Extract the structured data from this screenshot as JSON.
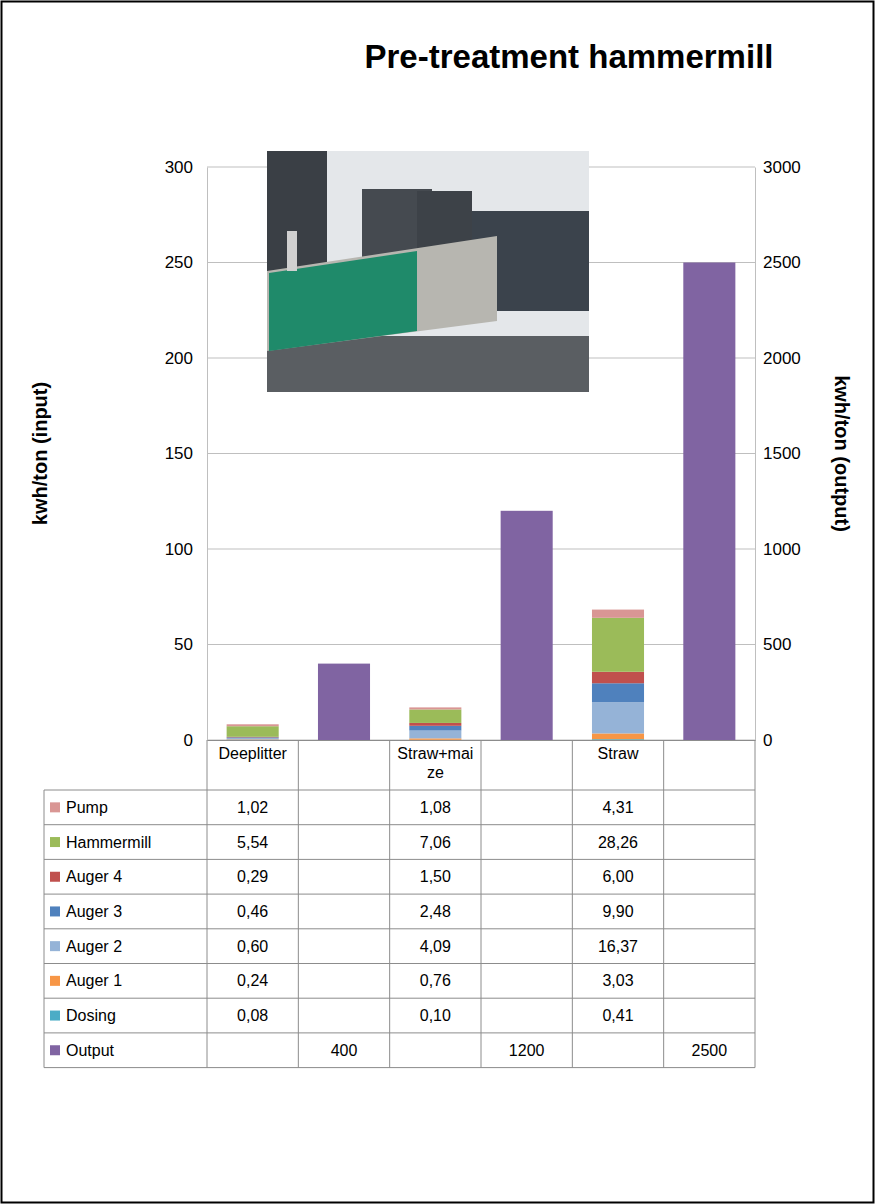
{
  "chart_data": {
    "type": "bar",
    "title": "Pre-treatment hammermill",
    "y_label": "kwh/ton (input)",
    "y2_label": "kwh/ton (output)",
    "categories": [
      "Deeplitter",
      null,
      "Straw+maize",
      null,
      "Straw",
      null
    ],
    "stacked": true,
    "grid": true,
    "ylim": [
      0,
      300
    ],
    "yticks": [
      0,
      50,
      100,
      150,
      200,
      250,
      300
    ],
    "y2lim": [
      0,
      3000
    ],
    "y2ticks": [
      0,
      500,
      1000,
      1500,
      2000,
      2500,
      3000
    ],
    "series": [
      {
        "name": "Pump",
        "color": "#d99694",
        "values": [
          1.02,
          null,
          1.08,
          null,
          4.31,
          null
        ],
        "value_labels": [
          "1,02",
          null,
          "1,08",
          null,
          "4,31",
          null
        ]
      },
      {
        "name": "Hammermill",
        "color": "#9bbb59",
        "values": [
          5.54,
          null,
          7.06,
          null,
          28.26,
          null
        ],
        "value_labels": [
          "5,54",
          null,
          "7,06",
          null,
          "28,26",
          null
        ]
      },
      {
        "name": "Auger 4",
        "color": "#c0504d",
        "values": [
          0.29,
          null,
          1.5,
          null,
          6.0,
          null
        ],
        "value_labels": [
          "0,29",
          null,
          "1,50",
          null,
          "6,00",
          null
        ]
      },
      {
        "name": "Auger 3",
        "color": "#4f81bd",
        "values": [
          0.46,
          null,
          2.48,
          null,
          9.9,
          null
        ],
        "value_labels": [
          "0,46",
          null,
          "2,48",
          null,
          "9,90",
          null
        ]
      },
      {
        "name": "Auger 2",
        "color": "#95b3d7",
        "values": [
          0.6,
          null,
          4.09,
          null,
          16.37,
          null
        ],
        "value_labels": [
          "0,60",
          null,
          "4,09",
          null,
          "16,37",
          null
        ]
      },
      {
        "name": "Auger 1",
        "color": "#f79646",
        "values": [
          0.24,
          null,
          0.76,
          null,
          3.03,
          null
        ],
        "value_labels": [
          "0,24",
          null,
          "0,76",
          null,
          "3,03",
          null
        ]
      },
      {
        "name": "Dosing",
        "color": "#4bacc6",
        "values": [
          0.08,
          null,
          0.1,
          null,
          0.41,
          null
        ],
        "value_labels": [
          "0,08",
          null,
          "0,10",
          null,
          "0,41",
          null
        ]
      },
      {
        "name": "Output",
        "color": "#8064a2",
        "axis": "y2",
        "values": [
          null,
          400,
          null,
          1200,
          null,
          2500
        ]
      }
    ]
  }
}
